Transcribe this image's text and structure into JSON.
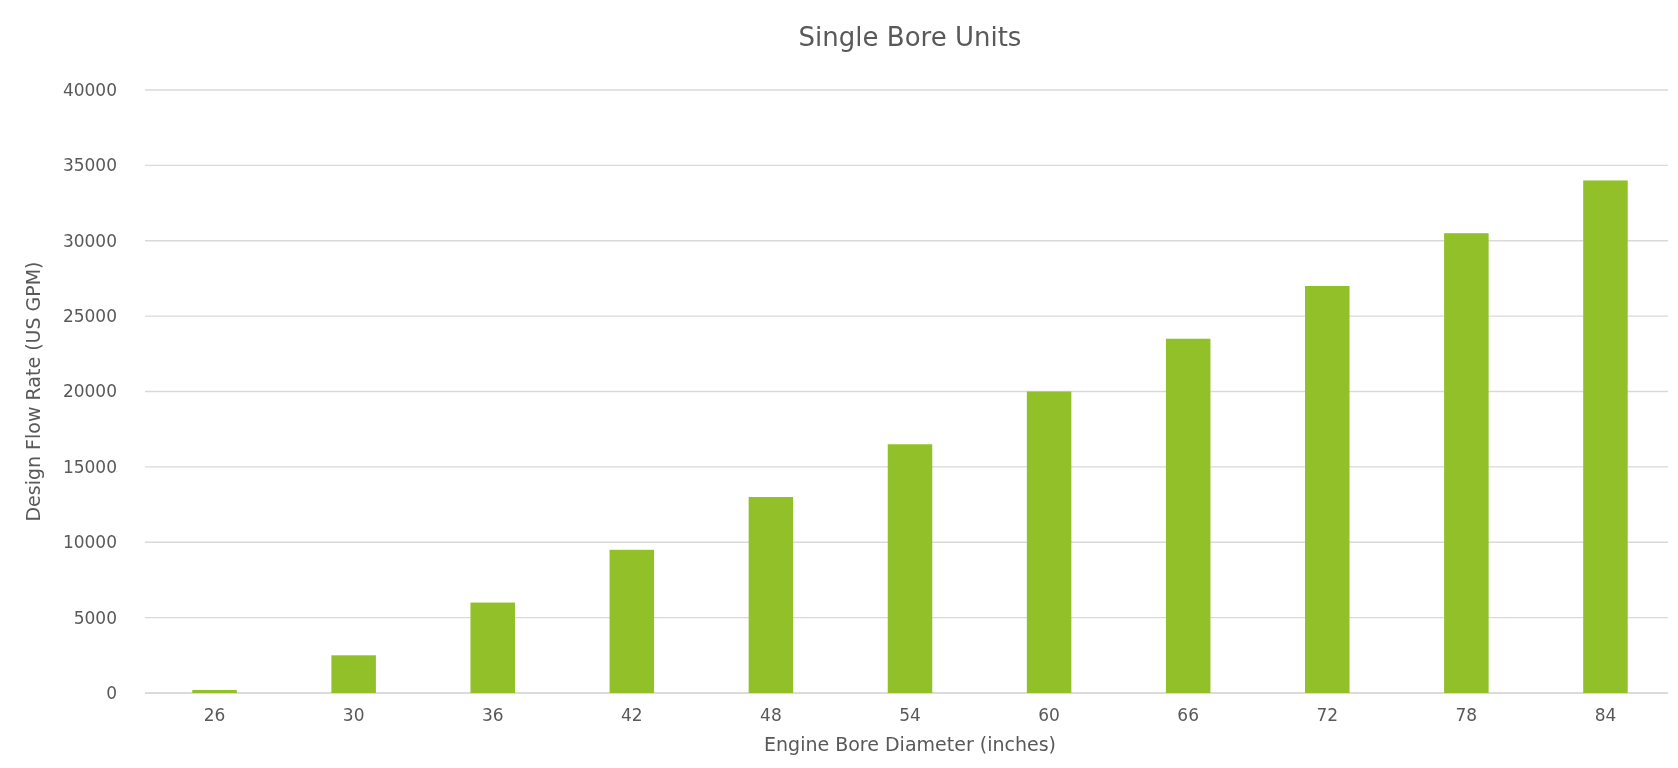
{
  "chart_data": {
    "type": "bar",
    "title": "Single Bore Units",
    "xlabel": "Engine Bore Diameter (inches)",
    "ylabel": "Design Flow Rate (US GPM)",
    "categories": [
      "26",
      "30",
      "36",
      "42",
      "48",
      "54",
      "60",
      "66",
      "72",
      "78",
      "84"
    ],
    "values": [
      200,
      2500,
      6000,
      9500,
      13000,
      16500,
      20000,
      23500,
      27000,
      30500,
      34000
    ],
    "color": "#92c028",
    "ylim": [
      0,
      40000
    ],
    "yticks": [
      0,
      5000,
      10000,
      15000,
      20000,
      25000,
      30000,
      35000,
      40000
    ],
    "grid": "y"
  }
}
